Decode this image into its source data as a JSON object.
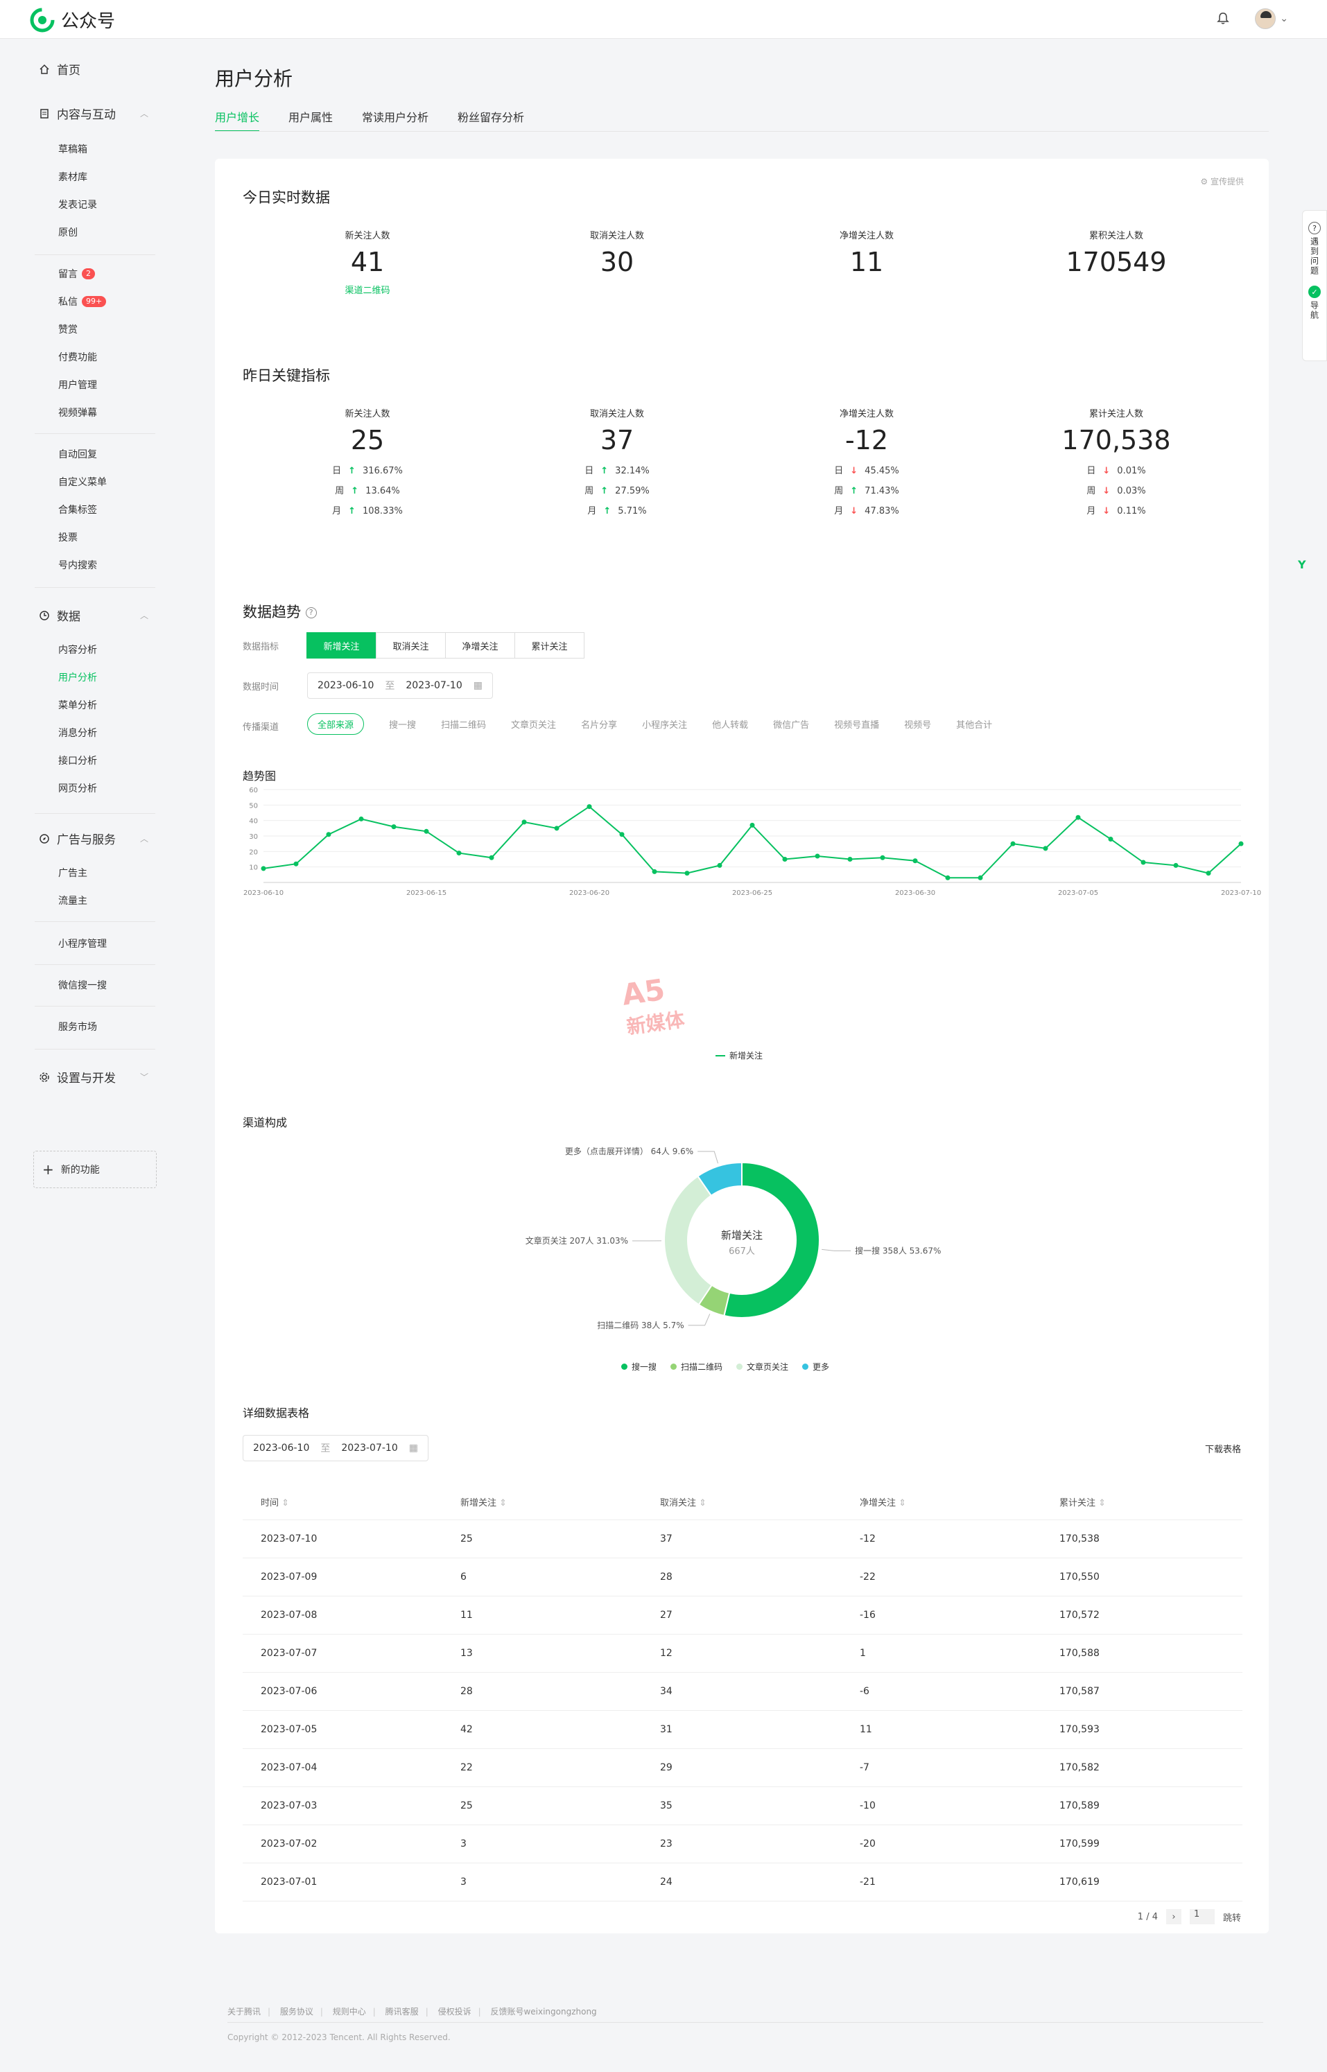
{
  "app": {
    "name": "公众号"
  },
  "sidebar": {
    "home": "首页",
    "group_content": "内容与互动",
    "content_items": [
      "草稿箱",
      "素材库",
      "发表记录",
      "原创"
    ],
    "msg_items": [
      {
        "label": "留言",
        "badge": "2"
      },
      {
        "label": "私信",
        "badge": "99+"
      },
      {
        "label": "赞赏",
        "badge": ""
      },
      {
        "label": "付费功能",
        "badge": ""
      },
      {
        "label": "用户管理",
        "badge": ""
      },
      {
        "label": "视频弹幕",
        "badge": ""
      }
    ],
    "auto_items": [
      "自动回复",
      "自定义菜单",
      "合集标签",
      "投票",
      "号内搜索"
    ],
    "group_data": "数据",
    "data_items": [
      "内容分析",
      "用户分析",
      "菜单分析",
      "消息分析",
      "接口分析",
      "网页分析"
    ],
    "group_ads": "广告与服务",
    "ads_items": [
      "广告主",
      "流量主"
    ],
    "mini_program": "小程序管理",
    "search": "微信搜一搜",
    "market": "服务市场",
    "group_settings": "设置与开发",
    "new_function": "新的功能"
  },
  "page": {
    "title": "用户分析",
    "tabs": [
      "用户增长",
      "用户属性",
      "常读用户分析",
      "粉丝留存分析"
    ]
  },
  "realtime": {
    "title": "今日实时数据",
    "corner": "宣传提供",
    "metrics": [
      {
        "label": "新关注人数",
        "value": "41",
        "link": "渠道二维码"
      },
      {
        "label": "取消关注人数",
        "value": "30"
      },
      {
        "label": "净增关注人数",
        "value": "11"
      },
      {
        "label": "累积关注人数",
        "value": "170549"
      }
    ]
  },
  "yesterday": {
    "title": "昨日关键指标",
    "metrics": [
      {
        "label": "新关注人数",
        "value": "25",
        "rows": [
          {
            "p": "日",
            "dir": "up",
            "v": "316.67%"
          },
          {
            "p": "周",
            "dir": "up",
            "v": "13.64%"
          },
          {
            "p": "月",
            "dir": "up",
            "v": "108.33%"
          }
        ]
      },
      {
        "label": "取消关注人数",
        "value": "37",
        "rows": [
          {
            "p": "日",
            "dir": "up",
            "v": "32.14%"
          },
          {
            "p": "周",
            "dir": "up",
            "v": "27.59%"
          },
          {
            "p": "月",
            "dir": "up",
            "v": "5.71%"
          }
        ]
      },
      {
        "label": "净增关注人数",
        "value": "-12",
        "rows": [
          {
            "p": "日",
            "dir": "down",
            "v": "45.45%"
          },
          {
            "p": "周",
            "dir": "up",
            "v": "71.43%"
          },
          {
            "p": "月",
            "dir": "down",
            "v": "47.83%"
          }
        ]
      },
      {
        "label": "累计关注人数",
        "value": "170,538",
        "rows": [
          {
            "p": "日",
            "dir": "down",
            "v": "0.01%"
          },
          {
            "p": "周",
            "dir": "down",
            "v": "0.03%"
          },
          {
            "p": "月",
            "dir": "down",
            "v": "0.11%"
          }
        ]
      }
    ]
  },
  "trend": {
    "title": "数据趋势",
    "metric_label": "数据指标",
    "metric_options": [
      "新增关注",
      "取消关注",
      "净增关注",
      "累计关注"
    ],
    "time_label": "数据时间",
    "date_from": "2023-06-10",
    "date_to": "2023-07-10",
    "date_sep": "至",
    "channel_label": "传播渠道",
    "channels": [
      "全部来源",
      "搜一搜",
      "扫描二维码",
      "文章页关注",
      "名片分享",
      "小程序关注",
      "他人转载",
      "微信广告",
      "视频号直播",
      "视频号",
      "其他合计"
    ],
    "chart_title": "趋势图",
    "legend": "新增关注"
  },
  "channel": {
    "title": "渠道构成",
    "center_label": "新增关注",
    "center_value": "667人",
    "labels": [
      "搜一搜 358人 53.67%",
      "扫描二维码 38人 5.7%",
      "文章页关注 207人 31.03%",
      "更多（点击展开详情） 64人 9.6%"
    ],
    "legend": [
      "搜一搜",
      "扫描二维码",
      "文章页关注",
      "更多"
    ]
  },
  "detail": {
    "title": "详细数据表格",
    "date_from": "2023-06-10",
    "date_to": "2023-07-10",
    "date_sep": "至",
    "download": "下载表格",
    "columns": [
      "时间",
      "新增关注",
      "取消关注",
      "净增关注",
      "累计关注"
    ],
    "rows": [
      [
        "2023-07-10",
        "25",
        "37",
        "-12",
        "170,538"
      ],
      [
        "2023-07-09",
        "6",
        "28",
        "-22",
        "170,550"
      ],
      [
        "2023-07-08",
        "11",
        "27",
        "-16",
        "170,572"
      ],
      [
        "2023-07-07",
        "13",
        "12",
        "1",
        "170,588"
      ],
      [
        "2023-07-06",
        "28",
        "34",
        "-6",
        "170,587"
      ],
      [
        "2023-07-05",
        "42",
        "31",
        "11",
        "170,593"
      ],
      [
        "2023-07-04",
        "22",
        "29",
        "-7",
        "170,582"
      ],
      [
        "2023-07-03",
        "25",
        "35",
        "-10",
        "170,589"
      ],
      [
        "2023-07-02",
        "3",
        "23",
        "-20",
        "170,599"
      ],
      [
        "2023-07-01",
        "3",
        "24",
        "-21",
        "170,619"
      ]
    ],
    "pagination": "1 / 4",
    "page_input": "1",
    "jump": "跳转"
  },
  "float_panel": {
    "help": "遇到问题",
    "guide": "导航"
  },
  "footer": {
    "links": [
      "关于腾讯",
      "服务协议",
      "规则中心",
      "腾讯客服",
      "侵权投诉",
      "反馈账号weixingongzhong"
    ],
    "copyright": "Copyright © 2012-2023 Tencent. All Rights Reserved."
  },
  "chart_data": [
    {
      "type": "line",
      "title": "趋势图",
      "x": [
        "2023-06-10",
        "2023-06-11",
        "2023-06-12",
        "2023-06-13",
        "2023-06-14",
        "2023-06-15",
        "2023-06-16",
        "2023-06-17",
        "2023-06-18",
        "2023-06-19",
        "2023-06-20",
        "2023-06-21",
        "2023-06-22",
        "2023-06-23",
        "2023-06-24",
        "2023-06-25",
        "2023-06-26",
        "2023-06-27",
        "2023-06-28",
        "2023-06-29",
        "2023-06-30",
        "2023-07-01",
        "2023-07-02",
        "2023-07-03",
        "2023-07-04",
        "2023-07-05",
        "2023-07-06",
        "2023-07-07",
        "2023-07-08",
        "2023-07-09",
        "2023-07-10"
      ],
      "xticks": [
        "2023-06-10",
        "2023-06-15",
        "2023-06-20",
        "2023-06-25",
        "2023-06-30",
        "2023-07-05",
        "2023-07-10"
      ],
      "yticks": [
        10,
        20,
        30,
        40,
        50,
        60
      ],
      "ylim": [
        0,
        60
      ],
      "series": [
        {
          "name": "新增关注",
          "color": "#07c160",
          "values": [
            9,
            12,
            31,
            41,
            36,
            33,
            19,
            16,
            39,
            35,
            49,
            31,
            7,
            6,
            11,
            37,
            15,
            17,
            15,
            16,
            14,
            3,
            3,
            25,
            22,
            42,
            28,
            13,
            11,
            6,
            25
          ]
        }
      ],
      "grid": true,
      "legend": "bottom"
    },
    {
      "type": "pie",
      "title": "渠道构成",
      "categories": [
        "搜一搜",
        "扫描二维码",
        "文章页关注",
        "更多"
      ],
      "values": [
        358,
        38,
        207,
        64
      ],
      "percents": [
        53.67,
        5.7,
        31.03,
        9.6
      ],
      "colors": [
        "#07c160",
        "#95d475",
        "#d3eed6",
        "#36c3e0"
      ],
      "total": 667,
      "legend": "bottom"
    }
  ]
}
